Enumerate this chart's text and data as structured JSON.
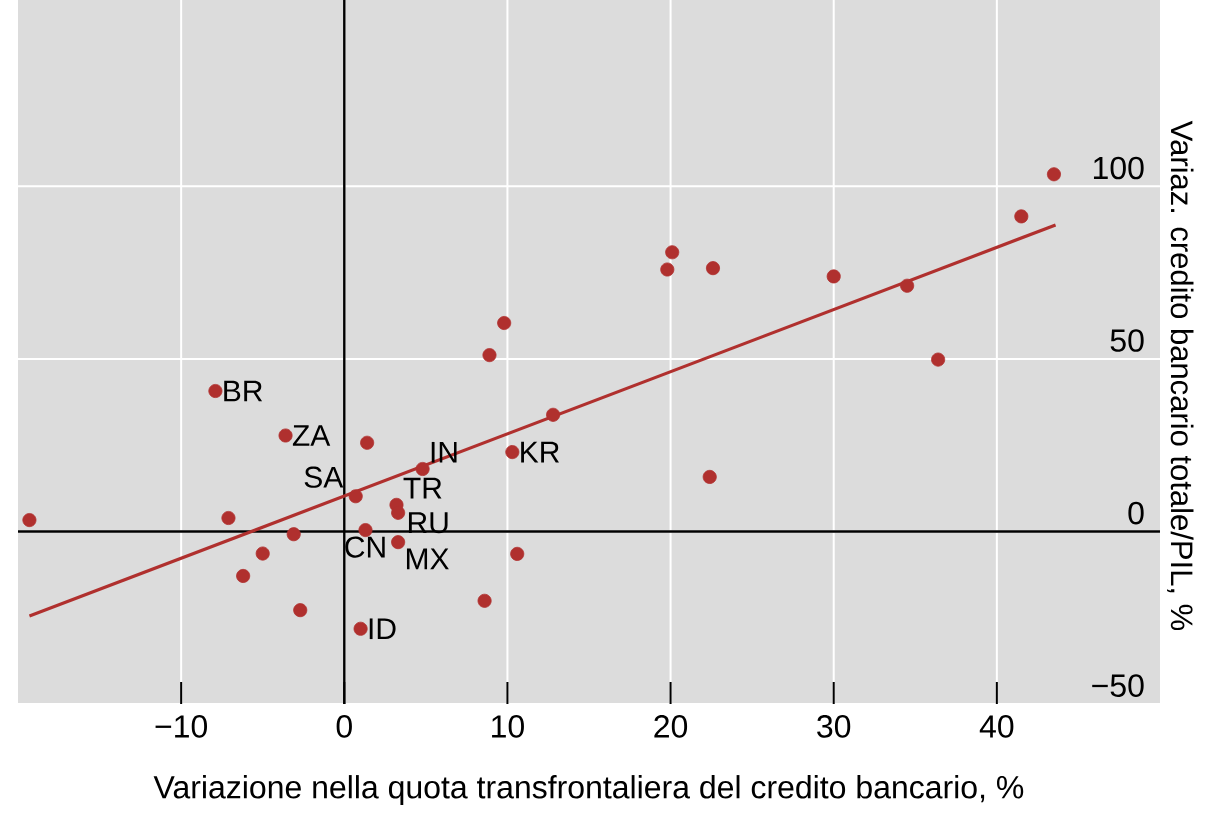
{
  "chart_data": {
    "type": "scatter",
    "xlabel": "Variazione nella quota transfrontaliera del credito bancario, %",
    "ylabel": "Variaz. credito bancario totale/PIL, %",
    "xlim": [
      -20,
      50
    ],
    "ylim": [
      -50,
      154
    ],
    "xticks": [
      {
        "value": -10,
        "label": "−10"
      },
      0,
      10,
      20,
      30,
      40
    ],
    "yticks": [
      {
        "value": -50,
        "label": "−50"
      },
      0,
      50,
      100
    ],
    "grid": true,
    "series": [
      {
        "type": "scatter",
        "marker": "circle",
        "color": "#b0302e",
        "x": [
          -19.3,
          -7.9,
          -3.6,
          1.4,
          4.8,
          10.3,
          12.8,
          8.9,
          9.8,
          0.7,
          3.2,
          3.3,
          -7.1,
          -3.1,
          1.3,
          3.3,
          -5.0,
          -6.2,
          10.6,
          -2.7,
          8.6,
          1.0,
          19.8,
          20.1,
          22.6,
          22.4,
          30.0,
          34.5,
          36.4,
          41.5,
          43.5
        ],
        "values": [
          3.3,
          40.7,
          27.8,
          25.7,
          18.1,
          23.0,
          33.8,
          51.1,
          60.4,
          10.2,
          7.7,
          5.4,
          3.9,
          -0.8,
          0.4,
          -3.1,
          -6.4,
          -12.9,
          -6.5,
          -22.8,
          -20.1,
          -28.2,
          75.9,
          80.9,
          76.3,
          15.8,
          73.9,
          71.2,
          49.8,
          91.3,
          103.5
        ]
      },
      {
        "type": "line",
        "color": "#b0302e",
        "marker": "none",
        "x": [
          -19.3,
          43.6
        ],
        "values": [
          -24.5,
          88.8
        ]
      }
    ],
    "annotations": [
      {
        "text": "BR",
        "x": -7.9,
        "y": 40.7
      },
      {
        "text": "ZA",
        "x": -3.6,
        "y": 27.8
      },
      {
        "text": "IN",
        "x": 4.8,
        "y": 18.1
      },
      {
        "text": "KR",
        "x": 10.3,
        "y": 23.0
      },
      {
        "text": "SA",
        "x": 0.7,
        "y": 10.2
      },
      {
        "text": "TR",
        "x": 3.2,
        "y": 7.7
      },
      {
        "text": "RU",
        "x": 3.3,
        "y": 5.4
      },
      {
        "text": "CN",
        "x": 1.3,
        "y": 0.4
      },
      {
        "text": "MX",
        "x": 3.3,
        "y": -3.1
      },
      {
        "text": "ID",
        "x": 1.0,
        "y": -28.2
      }
    ]
  }
}
